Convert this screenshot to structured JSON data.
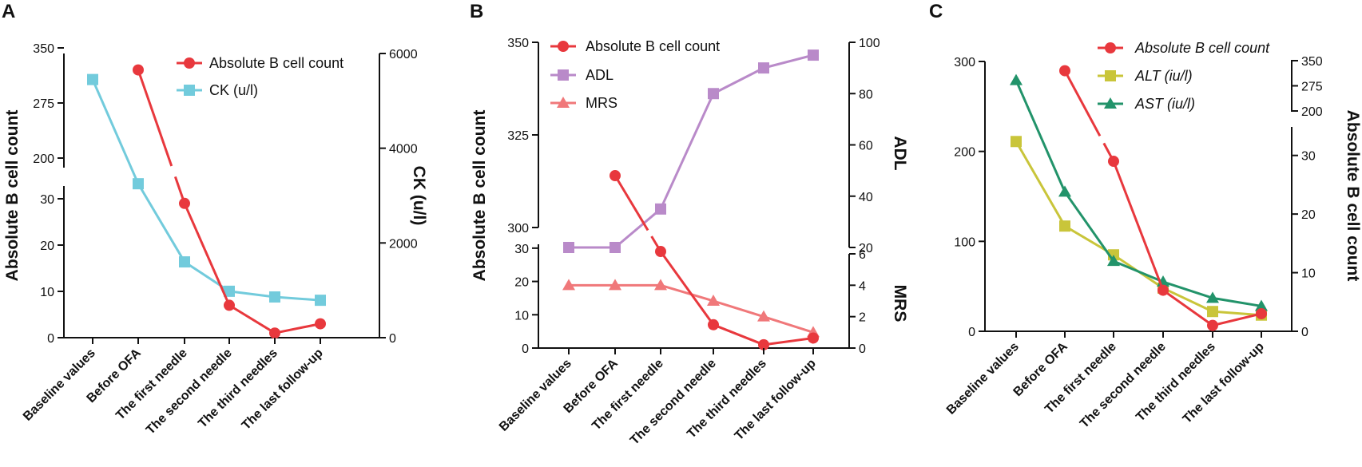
{
  "chart_data": [
    {
      "panel": "A",
      "type": "line",
      "categories": [
        "Baseline values",
        "Before OFA",
        "The first needle",
        "The second needle",
        "The third needles",
        "The last follow-up"
      ],
      "y_left": {
        "title": "Absolute B cell count",
        "broken": true,
        "lower": {
          "range": [
            0,
            35
          ],
          "ticks": [
            "0",
            "10",
            "20",
            "30"
          ]
        },
        "upper": {
          "range": [
            200,
            350
          ],
          "ticks": [
            "200",
            "275",
            "350"
          ]
        }
      },
      "y_right": {
        "title": "CK (u/l)",
        "range": [
          0,
          6000
        ],
        "ticks": [
          "0",
          "2000",
          "4000",
          "6000"
        ]
      },
      "series": [
        {
          "name": "Absolute B cell count",
          "axis": "left",
          "color": "#e8383d",
          "marker": "circle",
          "values": [
            null,
            320,
            29,
            7,
            1,
            3
          ]
        },
        {
          "name": "CK (u/l)",
          "axis": "right",
          "color": "#72cbdc",
          "marker": "square",
          "values": [
            null,
            null,
            null,
            null,
            null,
            null
          ],
          "values_right": [
            5450,
            3250,
            1600,
            980,
            860,
            790
          ]
        }
      ],
      "legend": [
        "Absolute B cell count",
        "CK (u/l)"
      ]
    },
    {
      "panel": "B",
      "type": "line",
      "categories": [
        "Baseline values",
        "Before OFA",
        "The first needle",
        "The second needle",
        "The third needles",
        "The last follow-up"
      ],
      "y_left": {
        "title": "Absolute B cell count",
        "broken": true,
        "lower": {
          "range": [
            0,
            35
          ],
          "ticks": [
            "0",
            "10",
            "20",
            "30"
          ]
        },
        "upper": {
          "range": [
            300,
            350
          ],
          "ticks": [
            "300",
            "325",
            "350"
          ]
        }
      },
      "y_right_upper": {
        "title": "ADL",
        "range": [
          20,
          100
        ],
        "ticks": [
          "20",
          "40",
          "60",
          "80",
          "100"
        ]
      },
      "y_right_lower": {
        "title": "MRS",
        "range": [
          0,
          6
        ],
        "ticks": [
          "0",
          "2",
          "4",
          "6"
        ]
      },
      "series": [
        {
          "name": "Absolute B cell count",
          "axis": "left",
          "color": "#e8383d",
          "marker": "circle",
          "values": [
            null,
            314,
            29,
            7,
            1,
            3
          ]
        },
        {
          "name": "ADL",
          "axis": "right-upper",
          "color": "#b98ac9",
          "marker": "square",
          "values": [
            20,
            20,
            35,
            80,
            90,
            95
          ]
        },
        {
          "name": "MRS",
          "axis": "right-lower",
          "color": "#f0787a",
          "marker": "triangle",
          "values": [
            4,
            4,
            4,
            3,
            2,
            1
          ]
        }
      ],
      "legend": [
        "Absolute B cell count",
        "ADL",
        "MRS"
      ]
    },
    {
      "panel": "C",
      "type": "line",
      "categories": [
        "Baseline values",
        "Before OFA",
        "The first needle",
        "The second needle",
        "The third needles",
        "The last follow-up"
      ],
      "y_left": {
        "title": "",
        "range": [
          0,
          300
        ],
        "ticks": [
          "0",
          "100",
          "200",
          "300"
        ]
      },
      "y_right": {
        "title": "Absolute B cell count",
        "broken": true,
        "lower": {
          "range": [
            0,
            35
          ],
          "ticks": [
            "0",
            "10",
            "20",
            "30"
          ]
        },
        "upper": {
          "range": [
            200,
            350
          ],
          "ticks": [
            "200",
            "275",
            "350"
          ]
        }
      },
      "series": [
        {
          "name": "Absolute B cell count",
          "axis": "right",
          "color": "#e8383d",
          "marker": "circle",
          "values": [
            null,
            320,
            29,
            7,
            1,
            3
          ]
        },
        {
          "name": "ALT (iu/l)",
          "axis": "left",
          "color": "#c9c53a",
          "marker": "square",
          "values": [
            211,
            117,
            85,
            48,
            22,
            18
          ]
        },
        {
          "name": "AST (iu/l)",
          "axis": "left",
          "color": "#22936a",
          "marker": "triangle",
          "values": [
            279,
            155,
            78,
            55,
            37,
            28
          ]
        }
      ],
      "legend": [
        "Absolute B cell count",
        "ALT (iu/l)",
        "AST (iu/l)"
      ]
    }
  ]
}
